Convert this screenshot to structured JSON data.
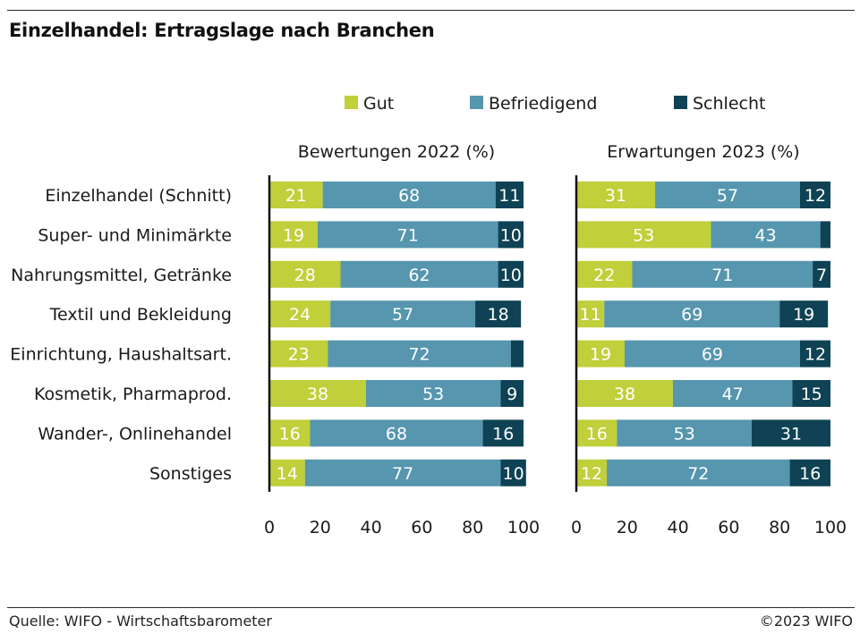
{
  "header": {
    "title": "Einzelhandel: Ertragslage nach Branchen"
  },
  "footer": {
    "source": "Quelle: WIFO - Wirtschaftsbarometer",
    "copyright": "©2023 WIFO"
  },
  "colors": {
    "gut": "#c0cf3a",
    "befriedigend": "#5696ae",
    "schlecht": "#0e4254",
    "label_text": "#ffffff"
  },
  "chart_data": {
    "type": "bar",
    "orientation": "horizontal",
    "stacked": true,
    "legend": {
      "position": "top",
      "entries": [
        "Gut",
        "Befriedigend",
        "Schlecht"
      ]
    },
    "categories": [
      "Einzelhandel (Schnitt)",
      "Super- und Minimärkte",
      "Nahrungsmittel, Getränke",
      "Textil und Bekleidung",
      "Einrichtung, Haushaltsart.",
      "Kosmetik, Pharmaprod.",
      "Wander-, Onlinehandel",
      "Sonstiges"
    ],
    "panels": [
      {
        "title": "Bewertungen 2022 (%)",
        "xlim": [
          0,
          100
        ],
        "xticks": [
          0,
          20,
          40,
          60,
          80,
          100
        ],
        "series": [
          {
            "name": "Gut",
            "values": [
              21,
              19,
              28,
              24,
              23,
              38,
              16,
              14
            ],
            "labels": [
              "21",
              "19",
              "28",
              "24",
              "23",
              "38",
              "16",
              "14"
            ]
          },
          {
            "name": "Befriedigend",
            "values": [
              68,
              71,
              62,
              57,
              72,
              53,
              68,
              77
            ],
            "labels": [
              "68",
              "71",
              "62",
              "57",
              "72",
              "53",
              "68",
              "77"
            ]
          },
          {
            "name": "Schlecht",
            "values": [
              11,
              10,
              10,
              18,
              5,
              9,
              16,
              10
            ],
            "labels": [
              "11",
              "10",
              "10",
              "18",
              "",
              "9",
              "16",
              "10"
            ]
          }
        ]
      },
      {
        "title": "Erwartungen 2023 (%)",
        "xlim": [
          0,
          100
        ],
        "xticks": [
          0,
          20,
          40,
          60,
          80,
          100
        ],
        "series": [
          {
            "name": "Gut",
            "values": [
              31,
              53,
              22,
              11,
              19,
              38,
              16,
              12
            ],
            "labels": [
              "31",
              "53",
              "22",
              "11",
              "19",
              "38",
              "16",
              "12"
            ]
          },
          {
            "name": "Befriedigend",
            "values": [
              57,
              43,
              71,
              69,
              69,
              47,
              53,
              72
            ],
            "labels": [
              "57",
              "43",
              "71",
              "69",
              "69",
              "47",
              "53",
              "72"
            ]
          },
          {
            "name": "Schlecht",
            "values": [
              12,
              4,
              7,
              19,
              12,
              15,
              31,
              16
            ],
            "labels": [
              "12",
              "",
              "7",
              "19",
              "12",
              "15",
              "31",
              "16"
            ]
          }
        ]
      }
    ]
  }
}
